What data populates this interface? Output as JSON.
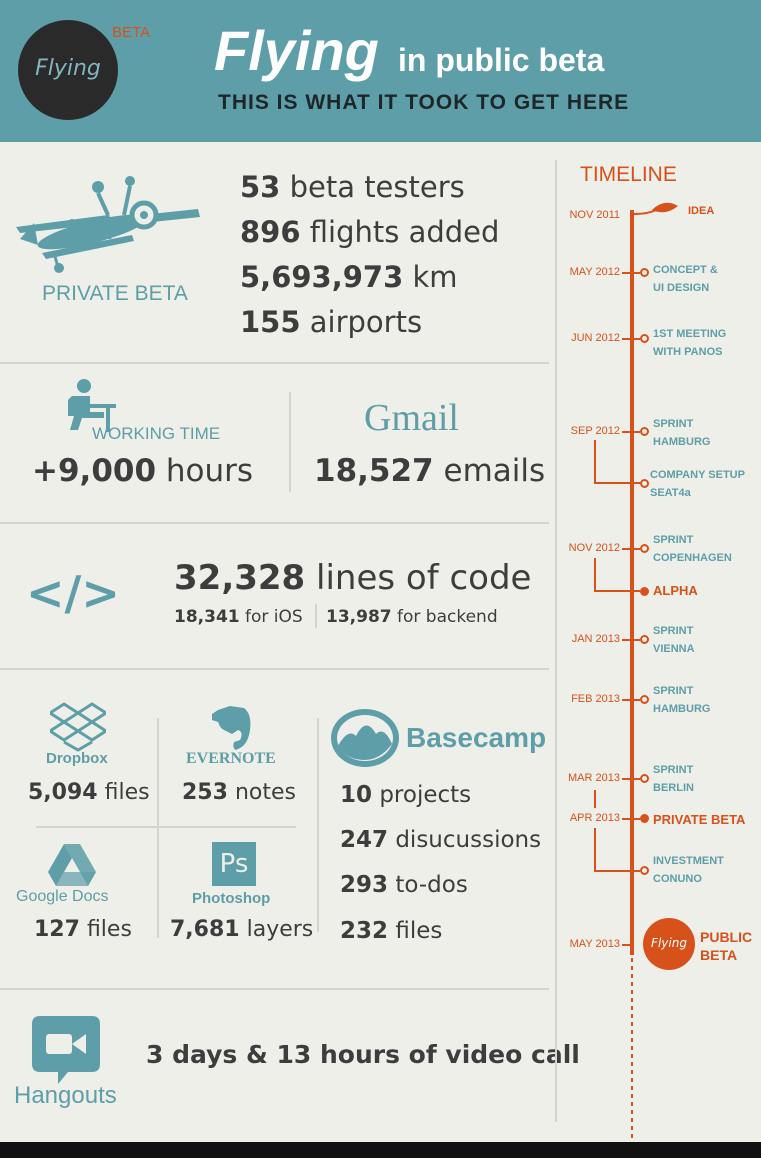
{
  "header": {
    "logo_text": "Flying",
    "beta_tag": "BETA",
    "title_big": "Flying",
    "title_small": "in public beta",
    "subtitle": "THIS IS WHAT IT TOOK TO GET HERE"
  },
  "private_beta": {
    "label": "PRIVATE BETA",
    "stats": [
      {
        "value": "53",
        "text": "beta testers"
      },
      {
        "value": "896",
        "text": "flights added"
      },
      {
        "value": "5,693,973",
        "text": "km"
      },
      {
        "value": "155",
        "text": "airports"
      }
    ]
  },
  "working": {
    "label": "WORKING TIME",
    "value": "+9,000",
    "unit": "hours"
  },
  "gmail": {
    "logo": "Gmail",
    "value": "18,527",
    "unit": "emails"
  },
  "code": {
    "icon": "</>",
    "value": "32,328",
    "unit": "lines of code",
    "ios_value": "18,341",
    "ios_text": "for iOS",
    "backend_value": "13,987",
    "backend_text": "for backend"
  },
  "tools": {
    "dropbox": {
      "name": "Dropbox",
      "value": "5,094",
      "unit": "files"
    },
    "evernote": {
      "name": "EVERNOTE",
      "value": "253",
      "unit": "notes"
    },
    "googledocs": {
      "name": "Google Docs",
      "value": "127",
      "unit": "files"
    },
    "photoshop": {
      "name": "Photoshop",
      "ps": "Ps",
      "value": "7,681",
      "unit": "layers"
    },
    "basecamp": {
      "name": "Basecamp",
      "stats": [
        {
          "value": "10",
          "text": "projects"
        },
        {
          "value": "247",
          "text": "disucussions"
        },
        {
          "value": "293",
          "text": "to-dos"
        },
        {
          "value": "232",
          "text": "files"
        }
      ]
    }
  },
  "hangouts": {
    "name": "Hangouts",
    "text": "3 days & 13 hours of video call"
  },
  "timeline": {
    "title": "TIMELINE",
    "events": [
      {
        "date": "NOV 2011",
        "l1": "IDEA",
        "l2": ""
      },
      {
        "date": "MAY 2012",
        "l1": "CONCEPT &",
        "l2": "UI DESIGN"
      },
      {
        "date": "JUN 2012",
        "l1": "1ST MEETING",
        "l2": "WITH PANOS"
      },
      {
        "date": "SEP 2012",
        "l1": "SPRINT",
        "l2": "HAMBURG"
      },
      {
        "date": "",
        "l1": "COMPANY SETUP",
        "l2": "SEAT4a"
      },
      {
        "date": "NOV 2012",
        "l1": "SPRINT",
        "l2": "COPENHAGEN"
      },
      {
        "date": "",
        "l1": "ALPHA",
        "l2": ""
      },
      {
        "date": "JAN 2013",
        "l1": "SPRINT",
        "l2": "VIENNA"
      },
      {
        "date": "FEB 2013",
        "l1": "SPRINT",
        "l2": "HAMBURG"
      },
      {
        "date": "MAR 2013",
        "l1": "SPRINT",
        "l2": "BERLIN"
      },
      {
        "date": "APR 2013",
        "l1": "PRIVATE BETA",
        "l2": ""
      },
      {
        "date": "",
        "l1": "INVESTMENT",
        "l2": "CONUNO"
      },
      {
        "date": "MAY 2013",
        "l1": "PUBLIC",
        "l2": "BETA",
        "badge": "Flying"
      }
    ]
  },
  "colors": {
    "teal": "#5d9ea8",
    "orange": "#d6521a",
    "dark": "#2a2a2a",
    "background": "#efefe9"
  }
}
